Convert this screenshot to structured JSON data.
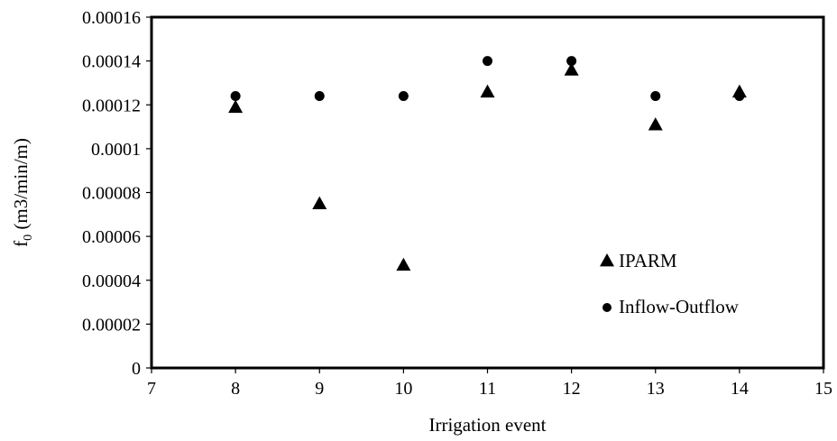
{
  "chart_data": {
    "type": "scatter",
    "title": "",
    "xlabel": "Irrigation event",
    "ylabel_main": "f",
    "ylabel_sub": "0",
    "ylabel_rest": " (m3/min/m)",
    "xlim": [
      7,
      15
    ],
    "ylim": [
      0,
      0.00016
    ],
    "x_ticks": [
      "7",
      "8",
      "9",
      "10",
      "11",
      "12",
      "13",
      "14",
      "15"
    ],
    "y_ticks": [
      "0",
      "0.00002",
      "0.00004",
      "0.00006",
      "0.00008",
      "0.0001",
      "0.00012",
      "0.00014",
      "0.00016"
    ],
    "grid": false,
    "legend_position": "right",
    "series": [
      {
        "name": "IPARM",
        "marker": "triangle",
        "color": "#000000",
        "points": [
          {
            "x": 8,
            "y": 0.000119
          },
          {
            "x": 9,
            "y": 7.5e-05
          },
          {
            "x": 10,
            "y": 4.7e-05
          },
          {
            "x": 11,
            "y": 0.000126
          },
          {
            "x": 12,
            "y": 0.000136
          },
          {
            "x": 13,
            "y": 0.000111
          },
          {
            "x": 14,
            "y": 0.000126
          }
        ]
      },
      {
        "name": "Inflow-Outflow",
        "marker": "circle",
        "color": "#000000",
        "points": [
          {
            "x": 8,
            "y": 0.000124
          },
          {
            "x": 9,
            "y": 0.000124
          },
          {
            "x": 10,
            "y": 0.000124
          },
          {
            "x": 11,
            "y": 0.00014
          },
          {
            "x": 12,
            "y": 0.00014
          },
          {
            "x": 13,
            "y": 0.000124
          },
          {
            "x": 14,
            "y": 0.000124
          }
        ]
      }
    ]
  }
}
